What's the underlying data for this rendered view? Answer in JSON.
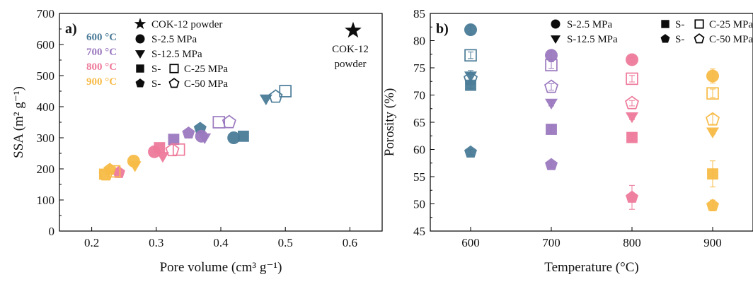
{
  "colors": {
    "600": "#4a7b97",
    "700": "#9b79bf",
    "800": "#ee7a9b",
    "900": "#f7bb47",
    "axis": "#000000"
  },
  "chart_data": [
    {
      "panel_label": "a)",
      "type": "scatter",
      "xlabel": "Pore volume (cm³ g⁻¹)",
      "ylabel": "SSA (m² g⁻¹)",
      "xlim": [
        0.15,
        0.65
      ],
      "ylim": [
        0,
        700
      ],
      "xticks": [
        "0.2",
        "0.3",
        "0.4",
        "0.5",
        "0.6"
      ],
      "yticks": [
        "0",
        "100",
        "200",
        "300",
        "400",
        "500",
        "600",
        "700"
      ],
      "temperature_legend": [
        "600 °C",
        "700 °C",
        "800 °C",
        "900 °C"
      ],
      "legend": {
        "star": "COK-12 powder",
        "circle": "S-2.5 MPa",
        "triangle": "S-12.5 MPa",
        "square_prefix": "S-",
        "square_suffix": "C-25 MPa",
        "pentagon_prefix": "S-",
        "pentagon_suffix": "C-50 MPa"
      },
      "annotation": [
        "COK-12",
        "powder"
      ],
      "points": [
        {
          "t": "600",
          "m": "circle",
          "f": true,
          "x": 0.42,
          "y": 300
        },
        {
          "t": "600",
          "m": "triangle",
          "f": true,
          "x": 0.47,
          "y": 425
        },
        {
          "t": "600",
          "m": "square",
          "f": true,
          "x": 0.435,
          "y": 305
        },
        {
          "t": "600",
          "m": "square",
          "f": false,
          "x": 0.5,
          "y": 450
        },
        {
          "t": "600",
          "m": "pentagon",
          "f": true,
          "x": 0.368,
          "y": 330
        },
        {
          "t": "600",
          "m": "pentagon",
          "f": false,
          "x": 0.485,
          "y": 432
        },
        {
          "t": "700",
          "m": "circle",
          "f": true,
          "x": 0.37,
          "y": 305
        },
        {
          "t": "700",
          "m": "triangle",
          "f": true,
          "x": 0.375,
          "y": 300
        },
        {
          "t": "700",
          "m": "square",
          "f": true,
          "x": 0.327,
          "y": 295
        },
        {
          "t": "700",
          "m": "square",
          "f": false,
          "x": 0.397,
          "y": 350
        },
        {
          "t": "700",
          "m": "pentagon",
          "f": true,
          "x": 0.35,
          "y": 315
        },
        {
          "t": "700",
          "m": "pentagon",
          "f": false,
          "x": 0.413,
          "y": 350
        },
        {
          "t": "800",
          "m": "circle",
          "f": true,
          "x": 0.297,
          "y": 255
        },
        {
          "t": "800",
          "m": "triangle",
          "f": true,
          "x": 0.31,
          "y": 240
        },
        {
          "t": "800",
          "m": "square",
          "f": true,
          "x": 0.305,
          "y": 268
        },
        {
          "t": "800",
          "m": "square",
          "f": false,
          "x": 0.335,
          "y": 262
        },
        {
          "t": "800",
          "m": "pentagon",
          "f": true,
          "x": 0.242,
          "y": 188
        },
        {
          "t": "800",
          "m": "pentagon",
          "f": false,
          "x": 0.325,
          "y": 260
        },
        {
          "t": "900",
          "m": "circle",
          "f": true,
          "x": 0.265,
          "y": 225
        },
        {
          "t": "900",
          "m": "triangle",
          "f": true,
          "x": 0.267,
          "y": 210
        },
        {
          "t": "900",
          "m": "square",
          "f": true,
          "x": 0.22,
          "y": 183
        },
        {
          "t": "900",
          "m": "square",
          "f": false,
          "x": 0.235,
          "y": 192
        },
        {
          "t": "900",
          "m": "pentagon",
          "f": true,
          "x": 0.228,
          "y": 198
        },
        {
          "t": "900",
          "m": "pentagon",
          "f": false,
          "x": 0.222,
          "y": 182
        },
        {
          "t": "powder",
          "m": "star",
          "f": true,
          "x": 0.605,
          "y": 645
        }
      ]
    },
    {
      "panel_label": "b)",
      "type": "scatter",
      "xlabel": "Temperature (°C)",
      "ylabel": "Porosity (%)",
      "xlim": [
        550,
        950
      ],
      "ylim": [
        45,
        85
      ],
      "xticks": [
        "600",
        "700",
        "800",
        "900"
      ],
      "yticks": [
        "45",
        "50",
        "55",
        "60",
        "65",
        "70",
        "75",
        "80",
        "85"
      ],
      "legend": {
        "circle": "S-2.5 MPa",
        "triangle": "S-12.5 MPa",
        "square_prefix": "S-",
        "square_suffix": "C-25 MPa",
        "pentagon_prefix": "S-",
        "pentagon_suffix": "C-50 MPa"
      },
      "points": [
        {
          "t": "600",
          "m": "circle",
          "f": true,
          "x": 600,
          "y": 82.0,
          "e": 0.8
        },
        {
          "t": "600",
          "m": "triangle",
          "f": true,
          "x": 600,
          "y": 73.5,
          "e": 1.0
        },
        {
          "t": "600",
          "m": "square",
          "f": true,
          "x": 600,
          "y": 71.8,
          "e": 0.6
        },
        {
          "t": "600",
          "m": "square",
          "f": false,
          "x": 600,
          "y": 77.3,
          "e": 0.6
        },
        {
          "t": "600",
          "m": "pentagon",
          "f": true,
          "x": 600,
          "y": 59.5,
          "e": 0.5
        },
        {
          "t": "600",
          "m": "pentagon",
          "f": false,
          "x": 600,
          "y": 73.0,
          "e": 0.8
        },
        {
          "t": "700",
          "m": "circle",
          "f": true,
          "x": 700,
          "y": 77.3,
          "e": 0.8
        },
        {
          "t": "700",
          "m": "triangle",
          "f": true,
          "x": 700,
          "y": 68.5,
          "e": 0.5
        },
        {
          "t": "700",
          "m": "square",
          "f": true,
          "x": 700,
          "y": 63.7,
          "e": 0.7
        },
        {
          "t": "700",
          "m": "square",
          "f": false,
          "x": 700,
          "y": 75.5,
          "e": 0.6
        },
        {
          "t": "700",
          "m": "pentagon",
          "f": true,
          "x": 700,
          "y": 57.2,
          "e": 0.5
        },
        {
          "t": "700",
          "m": "pentagon",
          "f": false,
          "x": 700,
          "y": 71.5,
          "e": 0.6
        },
        {
          "t": "800",
          "m": "circle",
          "f": true,
          "x": 800,
          "y": 76.5,
          "e": 0.4
        },
        {
          "t": "800",
          "m": "triangle",
          "f": true,
          "x": 800,
          "y": 66.0,
          "e": 0.5
        },
        {
          "t": "800",
          "m": "square",
          "f": true,
          "x": 800,
          "y": 62.2,
          "e": 0.6
        },
        {
          "t": "800",
          "m": "square",
          "f": false,
          "x": 800,
          "y": 73.0,
          "e": 0.6
        },
        {
          "t": "800",
          "m": "pentagon",
          "f": true,
          "x": 800,
          "y": 51.2,
          "e": 2.2
        },
        {
          "t": "800",
          "m": "pentagon",
          "f": false,
          "x": 800,
          "y": 68.5,
          "e": 0.5
        },
        {
          "t": "900",
          "m": "circle",
          "f": true,
          "x": 900,
          "y": 73.5,
          "e": 1.3
        },
        {
          "t": "900",
          "m": "triangle",
          "f": true,
          "x": 900,
          "y": 63.2,
          "e": 0.4
        },
        {
          "t": "900",
          "m": "square",
          "f": true,
          "x": 900,
          "y": 55.5,
          "e": 2.4
        },
        {
          "t": "900",
          "m": "square",
          "f": false,
          "x": 900,
          "y": 70.3,
          "e": 0.8
        },
        {
          "t": "900",
          "m": "pentagon",
          "f": true,
          "x": 900,
          "y": 49.7,
          "e": 1.0
        },
        {
          "t": "900",
          "m": "pentagon",
          "f": false,
          "x": 900,
          "y": 65.5,
          "e": 0.9
        }
      ]
    }
  ]
}
